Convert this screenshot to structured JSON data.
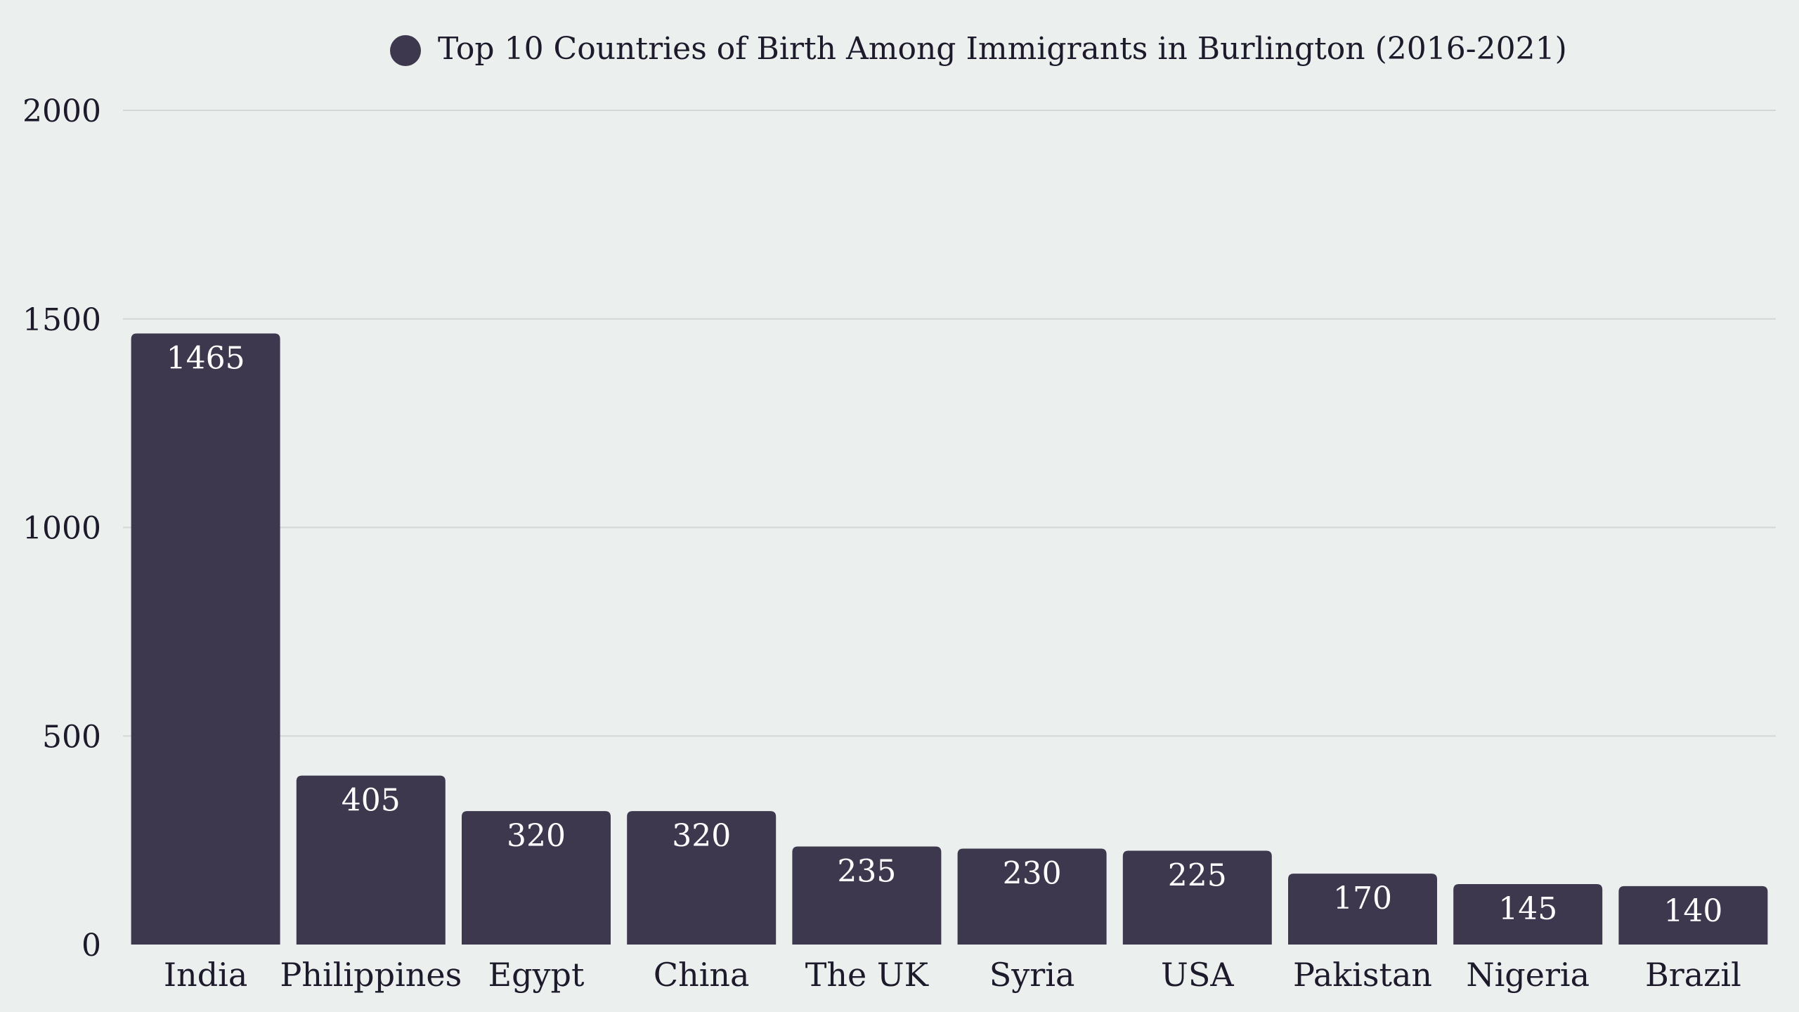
{
  "chart_data": {
    "type": "bar",
    "title": "",
    "xlabel": "",
    "ylabel": "",
    "ylim": [
      0,
      2000
    ],
    "yticks": [
      0,
      500,
      1000,
      1500,
      2000
    ],
    "grid": true,
    "legend_position": "top-center",
    "categories": [
      "India",
      "Philippines",
      "Egypt",
      "China",
      "The UK",
      "Syria",
      "USA",
      "Pakistan",
      "Nigeria",
      "Brazil"
    ],
    "series": [
      {
        "name": "Top 10 Countries of Birth Among Immigrants in Burlington (2016-2021)",
        "color": "#3d384e",
        "values": [
          1465,
          405,
          320,
          320,
          235,
          230,
          225,
          170,
          145,
          140
        ]
      }
    ],
    "data_labels": true,
    "colors": {
      "background": "#ebefee",
      "bar": "#3d384e",
      "gridline": "#d3d8d7",
      "value_label": "#ffffff",
      "text": "#1d1a2b"
    }
  }
}
